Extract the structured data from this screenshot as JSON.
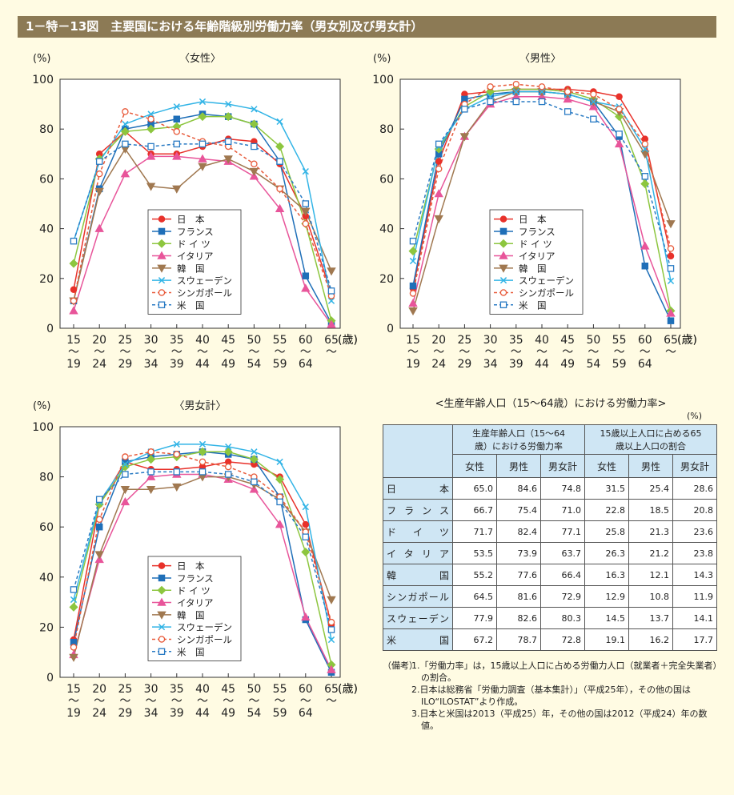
{
  "header": {
    "title": "1－特－13図　主要国における年齢階級別労働力率（男女別及び男女計）"
  },
  "chart_data": [
    {
      "type": "line",
      "title": "〈女性〉",
      "ylabel": "(%)",
      "xlabel": "(歳)",
      "categories": [
        "15\n～\n19",
        "20\n～\n24",
        "25\n～\n29",
        "30\n～\n34",
        "35\n～\n39",
        "40\n～\n44",
        "45\n～\n49",
        "50\n～\n54",
        "55\n～\n59",
        "60\n～\n64",
        "65\n～"
      ],
      "ylim": [
        0,
        100
      ],
      "yticks": [
        0,
        20,
        40,
        60,
        80,
        100
      ],
      "series": [
        {
          "name": "日　本",
          "color": "#e8312a",
          "marker": "circle",
          "dashed": false,
          "values": [
            15.5,
            70,
            79,
            70,
            70,
            73,
            76,
            75,
            66,
            45,
            14
          ]
        },
        {
          "name": "フランス",
          "color": "#1f6fb8",
          "marker": "square",
          "dashed": false,
          "values": [
            11,
            56,
            80,
            82,
            84,
            86,
            85,
            82,
            67,
            21,
            2
          ]
        },
        {
          "name": "ド イ ツ",
          "color": "#8dc63f",
          "marker": "diamond",
          "dashed": false,
          "values": [
            26,
            68,
            79,
            80,
            81,
            85,
            85,
            82,
            73,
            42,
            3
          ]
        },
        {
          "name": "イタリア",
          "color": "#e8559a",
          "marker": "triangle",
          "dashed": false,
          "values": [
            7,
            40,
            62,
            69,
            69,
            68,
            67,
            61,
            48,
            16,
            1.5
          ]
        },
        {
          "name": "韓　国",
          "color": "#a07850",
          "marker": "triangle-down",
          "dashed": false,
          "values": [
            11,
            55,
            72,
            57,
            56,
            65,
            68,
            63,
            56,
            47,
            23
          ]
        },
        {
          "name": "スウェーデン",
          "color": "#32b4e6",
          "marker": "x",
          "dashed": false,
          "values": [
            35,
            67,
            82,
            86,
            89,
            91,
            90,
            88,
            83,
            63,
            11
          ]
        },
        {
          "name": "シンガポール",
          "color": "#e85a3a",
          "marker": "circle",
          "dashed": true,
          "values": [
            11,
            62,
            87,
            84,
            79,
            75,
            73,
            66,
            56,
            42,
            13
          ]
        },
        {
          "name": "米　国",
          "color": "#2a7bc4",
          "marker": "square",
          "dashed": true,
          "values": [
            35,
            67,
            74,
            73,
            74,
            74,
            75,
            73,
            67,
            50,
            15
          ]
        }
      ]
    },
    {
      "type": "line",
      "title": "〈男性〉",
      "ylabel": "(%)",
      "xlabel": "(歳)",
      "categories": [
        "15\n～\n19",
        "20\n～\n24",
        "25\n～\n29",
        "30\n～\n34",
        "35\n～\n39",
        "40\n～\n44",
        "45\n～\n49",
        "50\n～\n54",
        "55\n～\n59",
        "60\n～\n64",
        "65\n～"
      ],
      "ylim": [
        0,
        100
      ],
      "yticks": [
        0,
        20,
        40,
        60,
        80,
        100
      ],
      "series": [
        {
          "name": "日　本",
          "color": "#e8312a",
          "marker": "circle",
          "dashed": false,
          "values": [
            16,
            67,
            94,
            95,
            96,
            96,
            96,
            95,
            93,
            76,
            29
          ]
        },
        {
          "name": "フランス",
          "color": "#1f6fb8",
          "marker": "square",
          "dashed": false,
          "values": [
            17,
            70,
            92,
            94,
            95,
            95,
            94,
            91,
            77,
            25,
            3
          ]
        },
        {
          "name": "ド イ ツ",
          "color": "#8dc63f",
          "marker": "diamond",
          "dashed": false,
          "values": [
            31,
            72,
            89,
            95,
            96,
            96,
            95,
            92,
            85,
            58,
            7
          ]
        },
        {
          "name": "イタリア",
          "color": "#e8559a",
          "marker": "triangle",
          "dashed": false,
          "values": [
            10,
            54,
            77,
            90,
            93,
            93,
            92,
            89,
            74,
            33,
            6
          ]
        },
        {
          "name": "韓　国",
          "color": "#a07850",
          "marker": "triangle-down",
          "dashed": false,
          "values": [
            7,
            44,
            77,
            91,
            95,
            95,
            94,
            91,
            87,
            70,
            42
          ]
        },
        {
          "name": "スウェーデン",
          "color": "#32b4e6",
          "marker": "x",
          "dashed": false,
          "values": [
            27,
            73,
            88,
            93,
            95,
            95,
            94,
            91,
            89,
            72,
            19
          ]
        },
        {
          "name": "シンガポール",
          "color": "#e85a3a",
          "marker": "circle",
          "dashed": true,
          "values": [
            14,
            64,
            90,
            97,
            98,
            97,
            95,
            94,
            88,
            74,
            32
          ]
        },
        {
          "name": "米　国",
          "color": "#2a7bc4",
          "marker": "square",
          "dashed": true,
          "values": [
            35,
            74,
            88,
            91,
            91,
            91,
            87,
            84,
            78,
            61,
            24
          ]
        }
      ]
    },
    {
      "type": "line",
      "title": "〈男女計〉",
      "ylabel": "(%)",
      "xlabel": "(歳)",
      "categories": [
        "15\n～\n19",
        "20\n～\n24",
        "25\n～\n29",
        "30\n～\n34",
        "35\n～\n39",
        "40\n～\n44",
        "45\n～\n49",
        "50\n～\n54",
        "55\n～\n59",
        "60\n～\n64",
        "65\n～"
      ],
      "ylim": [
        0,
        100
      ],
      "yticks": [
        0,
        20,
        40,
        60,
        80,
        100
      ],
      "series": [
        {
          "name": "日　本",
          "color": "#e8312a",
          "marker": "circle",
          "dashed": false,
          "values": [
            15,
            69,
            86,
            83,
            83,
            84,
            86,
            85,
            80,
            61,
            21
          ]
        },
        {
          "name": "フランス",
          "color": "#1f6fb8",
          "marker": "square",
          "dashed": false,
          "values": [
            14,
            60,
            86,
            88,
            89,
            90,
            89,
            87,
            72,
            23,
            2
          ]
        },
        {
          "name": "ド イ ツ",
          "color": "#8dc63f",
          "marker": "diamond",
          "dashed": false,
          "values": [
            28,
            69,
            84,
            87,
            88,
            90,
            90,
            87,
            79,
            50,
            5
          ]
        },
        {
          "name": "イタリア",
          "color": "#e8559a",
          "marker": "triangle",
          "dashed": false,
          "values": [
            9,
            47,
            70,
            80,
            81,
            81,
            79,
            75,
            61,
            24,
            3
          ]
        },
        {
          "name": "韓　国",
          "color": "#a07850",
          "marker": "triangle-down",
          "dashed": false,
          "values": [
            8,
            49,
            75,
            75,
            76,
            80,
            80,
            77,
            71,
            58,
            31
          ]
        },
        {
          "name": "スウェーデン",
          "color": "#32b4e6",
          "marker": "x",
          "dashed": false,
          "values": [
            31,
            70,
            85,
            90,
            93,
            93,
            92,
            90,
            86,
            68,
            15
          ]
        },
        {
          "name": "シンガポール",
          "color": "#e85a3a",
          "marker": "circle",
          "dashed": true,
          "values": [
            12,
            63,
            88,
            90,
            89,
            86,
            84,
            80,
            72,
            58,
            22
          ]
        },
        {
          "name": "米　国",
          "color": "#2a7bc4",
          "marker": "square",
          "dashed": true,
          "values": [
            35,
            71,
            81,
            82,
            82,
            82,
            81,
            78,
            70,
            56,
            19
          ]
        }
      ]
    }
  ],
  "table": {
    "title": "<生産年齢人口（15～64歳）における労働力率>",
    "unit": "(%)",
    "groups": [
      "生産年齢人口（15～64歳）における労働力率",
      "15歳以上人口に占める65歳以上人口の割合"
    ],
    "columns": [
      "女性",
      "男性",
      "男女計",
      "女性",
      "男性",
      "男女計"
    ],
    "rows": [
      [
        "日本",
        "65.0",
        "84.6",
        "74.8",
        "31.5",
        "25.4",
        "28.6"
      ],
      [
        "フランス",
        "66.7",
        "75.4",
        "71.0",
        "22.8",
        "18.5",
        "20.8"
      ],
      [
        "ドイツ",
        "71.7",
        "82.4",
        "77.1",
        "25.8",
        "21.3",
        "23.6"
      ],
      [
        "イタリア",
        "53.5",
        "73.9",
        "63.7",
        "26.3",
        "21.2",
        "23.8"
      ],
      [
        "韓国",
        "55.2",
        "77.6",
        "66.4",
        "16.3",
        "12.1",
        "14.3"
      ],
      [
        "シンガポール",
        "64.5",
        "81.6",
        "72.9",
        "12.9",
        "10.8",
        "11.9"
      ],
      [
        "スウェーデン",
        "77.9",
        "82.6",
        "80.3",
        "14.5",
        "13.7",
        "14.1"
      ],
      [
        "米国",
        "67.2",
        "78.7",
        "72.8",
        "19.1",
        "16.2",
        "17.7"
      ]
    ]
  },
  "notes": {
    "label": "（備考）",
    "items": [
      "1.「労働力率」は，15歳以上人口に占める労働力人口（就業者＋完全失業者）の割合。",
      "2.日本は総務省「労働力調査（基本集計）」（平成25年），その他の国はILO“ILOSTAT”より作成。",
      "3.日本と米国は2013（平成25）年，その他の国は2012（平成24）年の数値。"
    ]
  }
}
